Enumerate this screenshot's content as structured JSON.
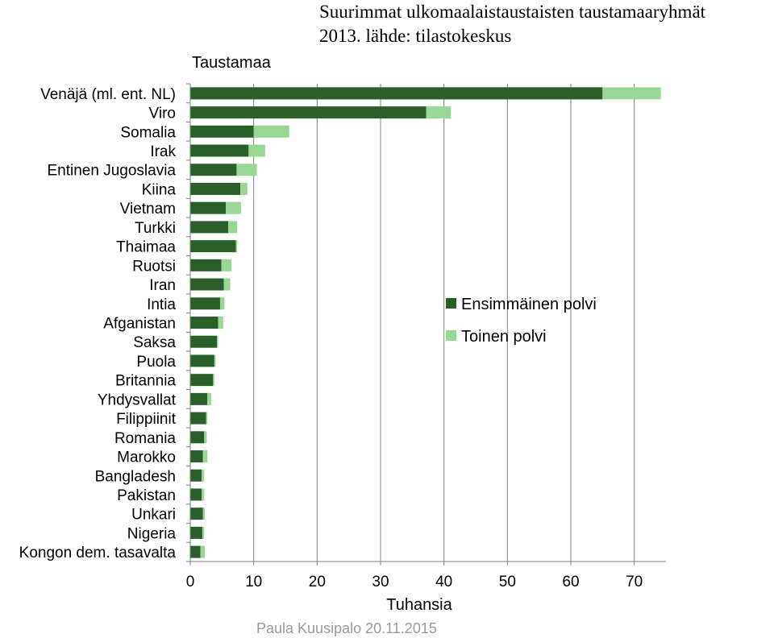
{
  "slide": {
    "title_line1": "Suurimmat ulkomaalaistaustaisten taustamaaryhmät",
    "title_line2": "2013. lähde: tilastokeskus",
    "footer": "Paula Kuusipalo 20.11.2015"
  },
  "chart_data": {
    "type": "bar",
    "orientation": "horizontal",
    "stacked": true,
    "category_axis_title": "Taustamaa",
    "xlabel": "Tuhansia",
    "xlim": [
      0,
      75
    ],
    "xticks": [
      0,
      10,
      20,
      30,
      40,
      50,
      60,
      70
    ],
    "grid": true,
    "legend_position": "right",
    "categories": [
      "Venäjä (ml. ent. NL)",
      "Viro",
      "Somalia",
      "Irak",
      "Entinen Jugoslavia",
      "Kiina",
      "Vietnam",
      "Turkki",
      "Thaimaa",
      "Ruotsi",
      "Iran",
      "Intia",
      "Afganistan",
      "Saksa",
      "Puola",
      "Britannia",
      "Yhdysvallat",
      "Filippiinit",
      "Romania",
      "Marokko",
      "Bangladesh",
      "Pakistan",
      "Unkari",
      "Nigeria",
      "Kongon dem. tasavalta"
    ],
    "series": [
      {
        "name": "Ensimmäinen polvi",
        "color": "#2a5f2a",
        "values": [
          65.0,
          37.2,
          10.0,
          9.2,
          7.3,
          7.9,
          5.6,
          6.0,
          7.2,
          4.9,
          5.3,
          4.7,
          4.4,
          4.2,
          3.8,
          3.6,
          2.7,
          2.5,
          2.2,
          2.0,
          1.8,
          1.8,
          2.0,
          1.9,
          1.6
        ]
      },
      {
        "name": "Toinen polvi",
        "color": "#98d894",
        "values": [
          9.2,
          3.9,
          5.6,
          2.6,
          3.2,
          1.1,
          2.4,
          1.4,
          0.2,
          1.6,
          1.0,
          0.7,
          0.8,
          0.2,
          0.2,
          0.2,
          0.6,
          0.2,
          0.4,
          0.7,
          0.4,
          0.4,
          0.3,
          0.3,
          0.7
        ]
      }
    ]
  }
}
